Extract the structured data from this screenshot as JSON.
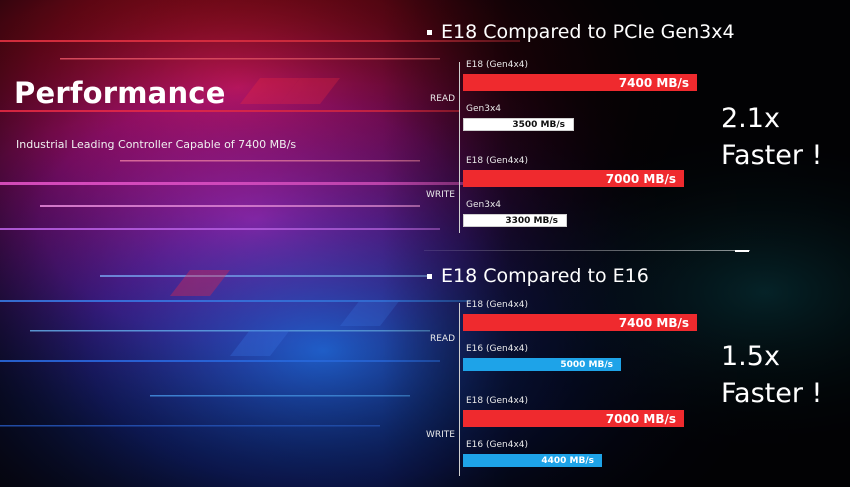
{
  "hero": {
    "title": "Performance",
    "subtitle": "Industrial Leading Controller Capable of 7400 MB/s"
  },
  "colors": {
    "e18_bar": "#ef2a2e",
    "gen3_bar": "#ffffff",
    "e16_bar": "#1ea3e8",
    "background": "#05040a"
  },
  "chart_data": [
    {
      "type": "bar",
      "orientation": "horizontal",
      "title": "E18 Compared to PCIe Gen3x4",
      "unit": "MB/s",
      "summary_line1": "2.1x",
      "summary_line2": "Faster !",
      "groups": [
        {
          "label": "READ",
          "bars": [
            {
              "name": "E18 (Gen4x4)",
              "value": 7400,
              "value_label": "7400 MB/s",
              "color": "#ef2a2e",
              "style": "big"
            },
            {
              "name": "Gen3x4",
              "value": 3500,
              "value_label": "3500 MB/s",
              "color": "#ffffff",
              "style": "small"
            }
          ]
        },
        {
          "label": "WRITE",
          "bars": [
            {
              "name": "E18 (Gen4x4)",
              "value": 7000,
              "value_label": "7000 MB/s",
              "color": "#ef2a2e",
              "style": "big"
            },
            {
              "name": "Gen3x4",
              "value": 3300,
              "value_label": "3300 MB/s",
              "color": "#ffffff",
              "style": "small"
            }
          ]
        }
      ]
    },
    {
      "type": "bar",
      "orientation": "horizontal",
      "title": "E18 Compared to E16",
      "unit": "MB/s",
      "summary_line1": "1.5x",
      "summary_line2": "Faster !",
      "groups": [
        {
          "label": "READ",
          "bars": [
            {
              "name": "E18 (Gen4x4)",
              "value": 7400,
              "value_label": "7400 MB/s",
              "color": "#ef2a2e",
              "style": "big"
            },
            {
              "name": "E16 (Gen4x4)",
              "value": 5000,
              "value_label": "5000 MB/s",
              "color": "#1ea3e8",
              "style": "small"
            }
          ]
        },
        {
          "label": "WRITE",
          "bars": [
            {
              "name": "E18 (Gen4x4)",
              "value": 7000,
              "value_label": "7000 MB/s",
              "color": "#ef2a2e",
              "style": "big"
            },
            {
              "name": "E16 (Gen4x4)",
              "value": 4400,
              "value_label": "4400 MB/s",
              "color": "#1ea3e8",
              "style": "small"
            }
          ]
        }
      ]
    }
  ]
}
